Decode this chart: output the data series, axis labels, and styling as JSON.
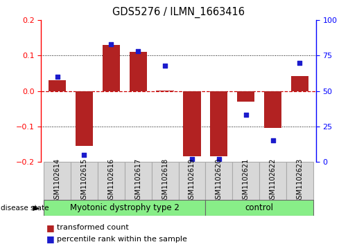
{
  "title": "GDS5276 / ILMN_1663416",
  "samples": [
    "GSM1102614",
    "GSM1102615",
    "GSM1102616",
    "GSM1102617",
    "GSM1102618",
    "GSM1102619",
    "GSM1102620",
    "GSM1102621",
    "GSM1102622",
    "GSM1102623"
  ],
  "red_values": [
    0.03,
    -0.155,
    0.13,
    0.11,
    0.002,
    -0.185,
    -0.185,
    -0.03,
    -0.105,
    0.042
  ],
  "blue_pct": [
    60,
    5,
    83,
    78,
    68,
    2,
    2,
    33,
    15,
    70
  ],
  "ylim": [
    -0.2,
    0.2
  ],
  "yticks_left": [
    -0.2,
    -0.1,
    0.0,
    0.1,
    0.2
  ],
  "yticks_right": [
    0,
    25,
    50,
    75,
    100
  ],
  "group1_label": "Myotonic dystrophy type 2",
  "group1_count": 6,
  "group2_label": "control",
  "group2_count": 4,
  "bar_color": "#B22222",
  "dot_color": "#1B1BCC",
  "zero_line_color": "#CC0000",
  "grid_color": "#000000",
  "bg_color": "#FFFFFF",
  "panel_bg": "#D8D8D8",
  "green_color": "#88EE88",
  "title_fontsize": 10.5,
  "legend_fontsize": 8,
  "label_fontsize": 7
}
